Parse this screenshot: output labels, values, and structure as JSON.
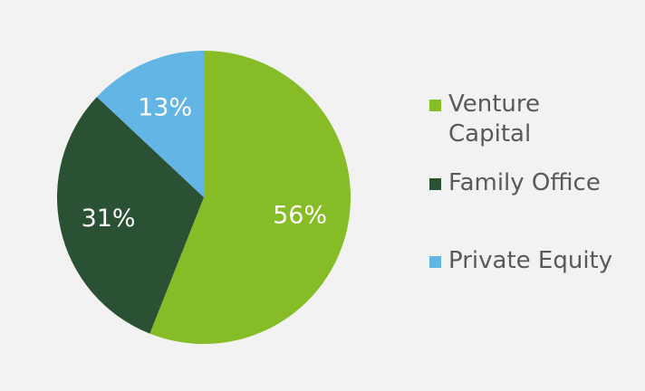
{
  "chart_data": {
    "type": "pie",
    "categories": [
      "Venture Capital",
      "Family Office",
      "Private Equity"
    ],
    "values": [
      56,
      31,
      13
    ],
    "labels": [
      "56%",
      "31%",
      "13%"
    ],
    "colors": [
      "#86bc25",
      "#2a5133",
      "#62b5e5"
    ],
    "legend": {
      "placement": "right",
      "entries": [
        "Venture\nCapital",
        "Family Office",
        "Private Equity"
      ]
    },
    "title": "",
    "start_angle": "12 o'clock",
    "direction": "clockwise"
  }
}
